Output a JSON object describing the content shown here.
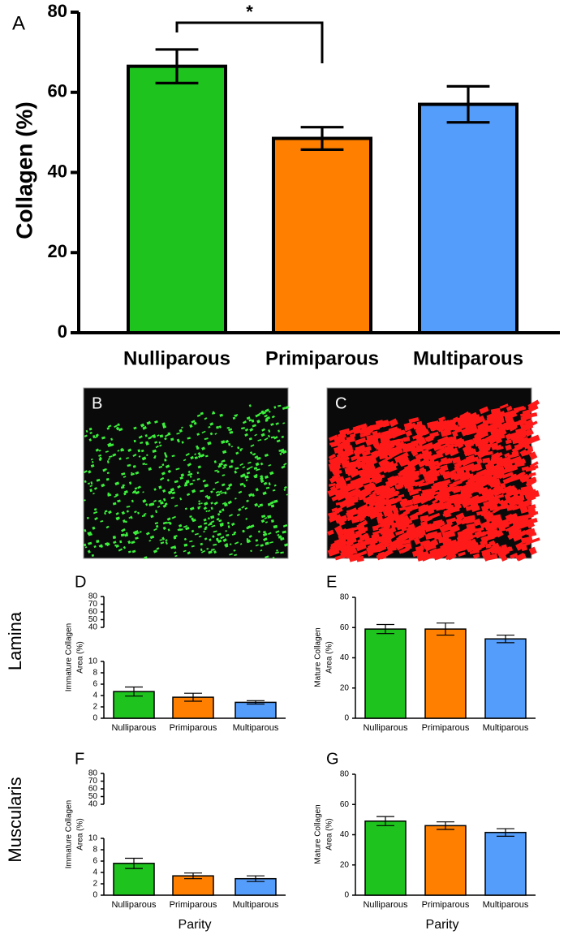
{
  "chart_data": [
    {
      "type": "bar",
      "panel_label": "A",
      "ylabel": [
        "Collagen (%)"
      ],
      "categories": [
        "Nulliparous",
        "Primiparous",
        "Multiparous"
      ],
      "values": [
        66.5,
        48.5,
        57
      ],
      "errors": [
        4.2,
        2.8,
        4.5
      ],
      "colors": [
        "#1ec31e",
        "#ff8000",
        "#559dfa"
      ],
      "ylim": [
        0,
        80
      ],
      "yticks": [
        0,
        20,
        40,
        60,
        80
      ],
      "annotation": "*"
    },
    {
      "type": "bar",
      "panel_label": "D",
      "ylabel": [
        "Immature Collagen",
        "Area (%)"
      ],
      "categories": [
        "Nulliparous",
        "Primiparous",
        "Multiparous"
      ],
      "values": [
        4.7,
        3.7,
        2.8
      ],
      "errors": [
        0.8,
        0.7,
        0.3
      ],
      "colors": [
        "#1ec31e",
        "#ff8000",
        "#559dfa"
      ],
      "ylim": [
        0,
        80
      ],
      "ybreak": [
        10,
        40
      ],
      "yticks": [
        0,
        2,
        4,
        6,
        8,
        10,
        40,
        50,
        60,
        70,
        80
      ]
    },
    {
      "type": "bar",
      "panel_label": "E",
      "ylabel": [
        "Mature  Collagen",
        "Area (%)"
      ],
      "categories": [
        "Nulliparous",
        "Primiparous",
        "Multiparous"
      ],
      "values": [
        59,
        59,
        52.5
      ],
      "errors": [
        3,
        4,
        2.5
      ],
      "colors": [
        "#1ec31e",
        "#ff8000",
        "#559dfa"
      ],
      "ylim": [
        0,
        80
      ],
      "yticks": [
        0,
        20,
        40,
        60,
        80
      ]
    },
    {
      "type": "bar",
      "panel_label": "F",
      "ylabel": [
        "Immature Collagen",
        "Area (%)"
      ],
      "xlabel": "Parity",
      "categories": [
        "Nulliparous",
        "Primiparous",
        "Multiparous"
      ],
      "values": [
        5.6,
        3.4,
        2.9
      ],
      "errors": [
        0.9,
        0.5,
        0.5
      ],
      "colors": [
        "#1ec31e",
        "#ff8000",
        "#559dfa"
      ],
      "ylim": [
        0,
        80
      ],
      "ybreak": [
        10,
        40
      ],
      "yticks": [
        0,
        2,
        4,
        6,
        8,
        10,
        40,
        50,
        60,
        70,
        80
      ]
    },
    {
      "type": "bar",
      "panel_label": "G",
      "ylabel": [
        "Mature  Collagen",
        "Area (%)"
      ],
      "xlabel": "Parity",
      "categories": [
        "Nulliparous",
        "Primiparous",
        "Multiparous"
      ],
      "values": [
        49,
        46,
        41.5
      ],
      "errors": [
        3,
        2.5,
        2.5
      ],
      "colors": [
        "#1ec31e",
        "#ff8000",
        "#559dfa"
      ],
      "ylim": [
        0,
        80
      ],
      "yticks": [
        0,
        20,
        40,
        60,
        80
      ]
    }
  ],
  "images": [
    {
      "label": "B"
    },
    {
      "label": "C"
    }
  ],
  "row_labels": [
    "Lamina",
    "Muscularis"
  ]
}
